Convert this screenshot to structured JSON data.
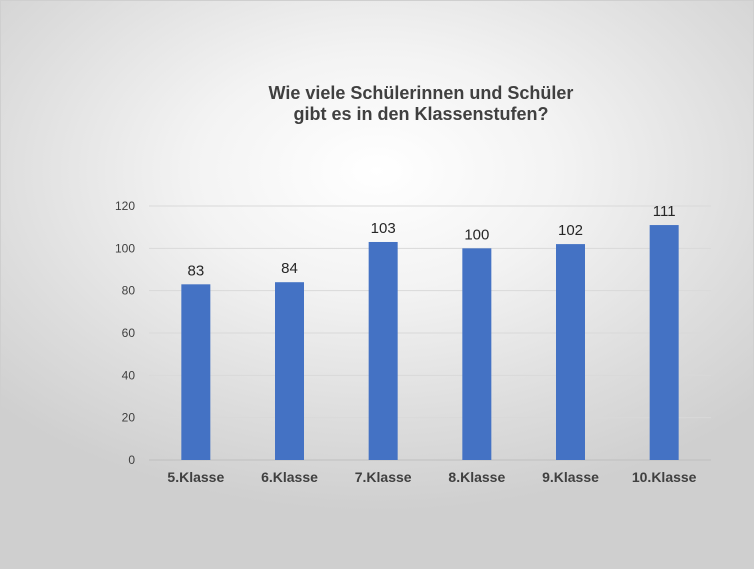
{
  "chart_data": {
    "type": "bar",
    "title_lines": [
      "Wie viele Schülerinnen und Schüler",
      "gibt es in den Klassenstufen?"
    ],
    "categories": [
      "5.Klasse",
      "6.Klasse",
      "7.Klasse",
      "8.Klasse",
      "9.Klasse",
      "10.Klasse"
    ],
    "values": [
      83,
      84,
      103,
      100,
      102,
      111
    ],
    "ylim": [
      0,
      120
    ],
    "yticks": [
      0,
      20,
      40,
      60,
      80,
      100,
      120
    ],
    "xlabel": "",
    "ylabel": "",
    "grid": true,
    "data_labels": true,
    "bar_color": "#4472c4",
    "legend": "none"
  }
}
